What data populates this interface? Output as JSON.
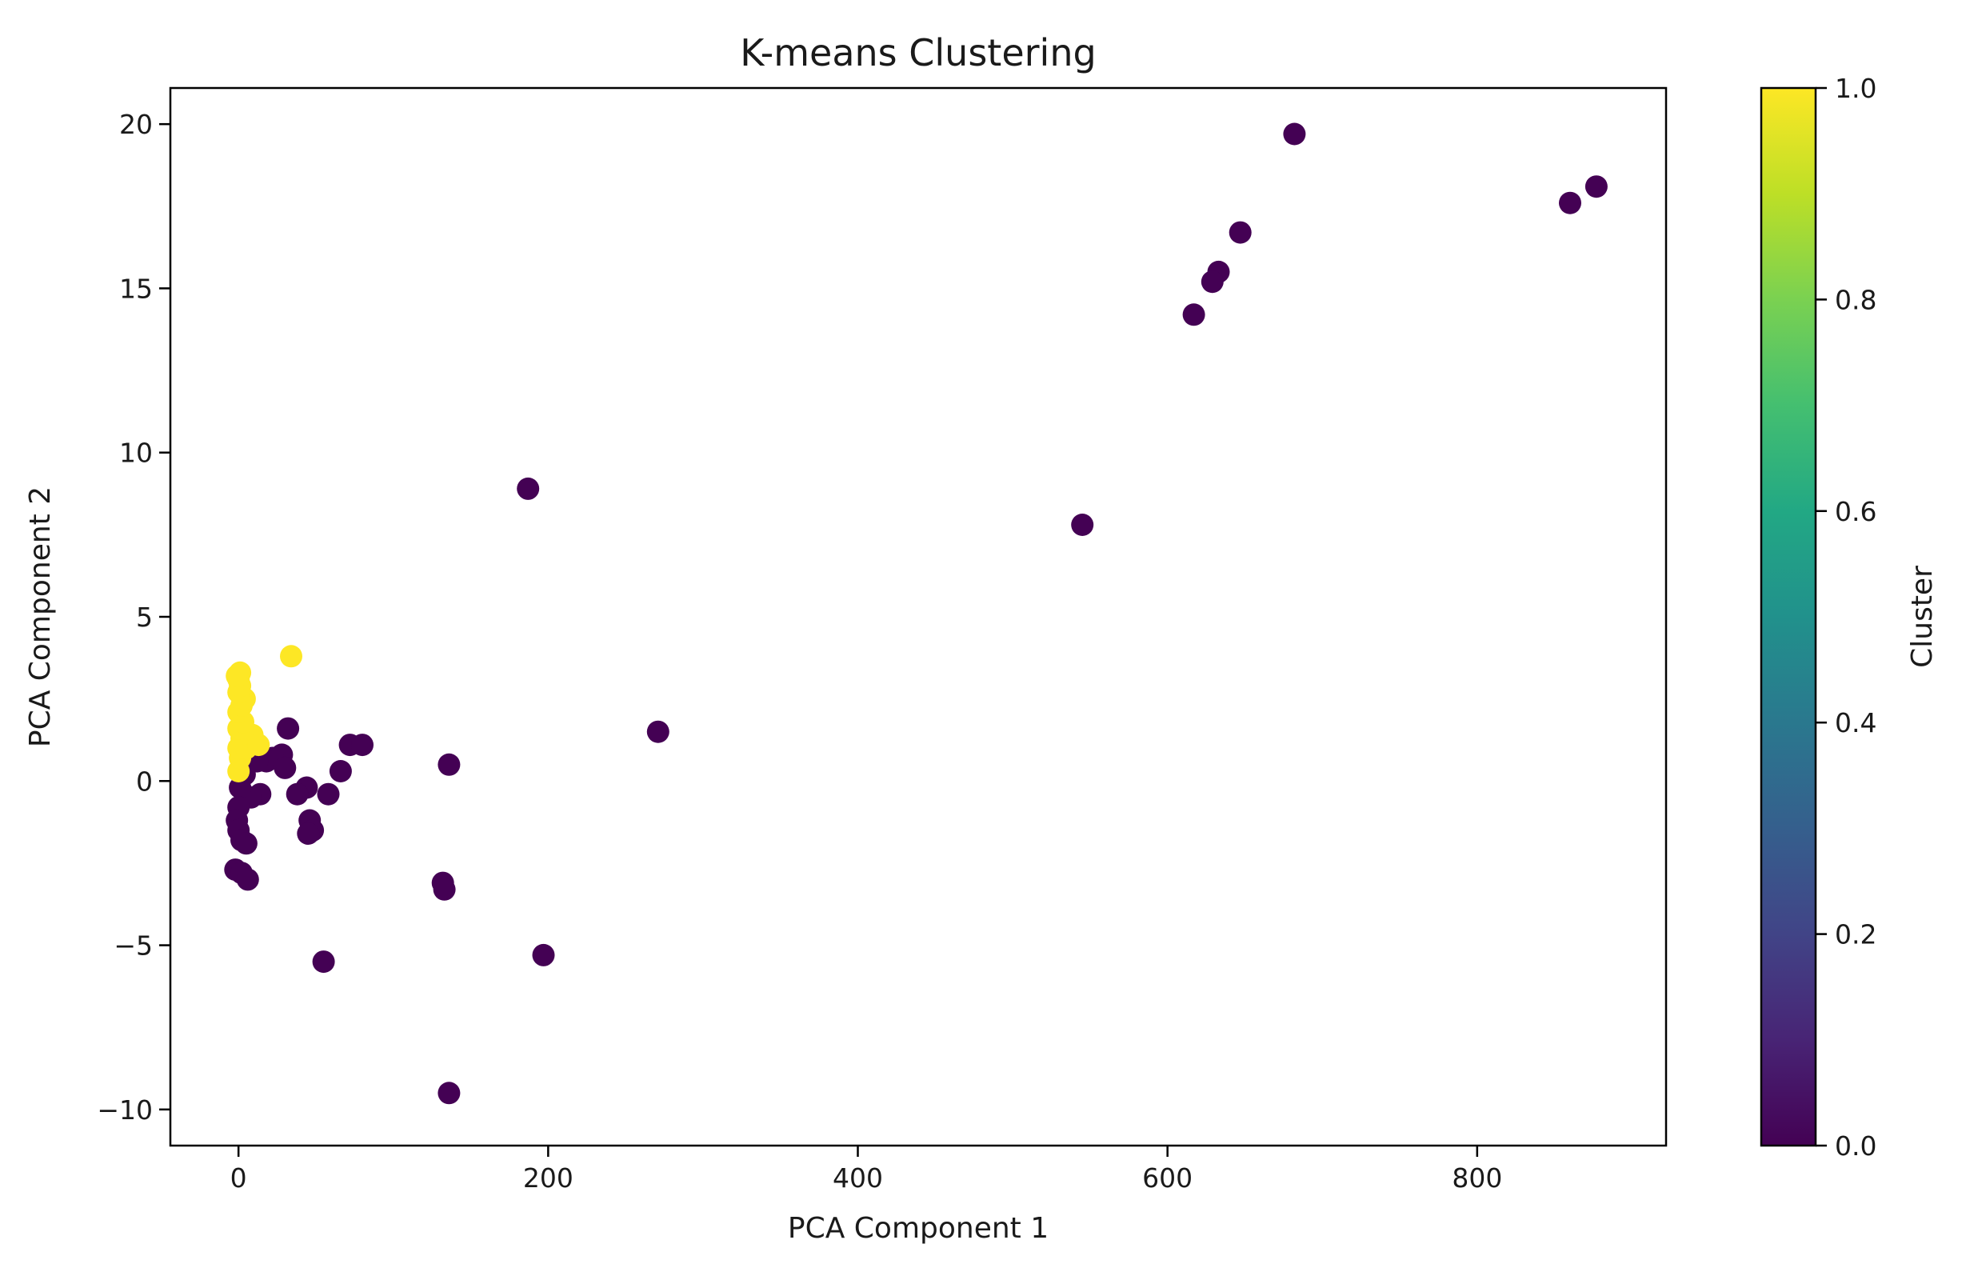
{
  "chart_data": {
    "type": "scatter",
    "title": "K-means Clustering",
    "xlabel": "PCA Component 1",
    "ylabel": "PCA Component 2",
    "xlim": [
      -44,
      922
    ],
    "ylim": [
      -11.1,
      21.1
    ],
    "xticks": [
      0,
      200,
      400,
      600,
      800
    ],
    "yticks": [
      -10,
      -5,
      0,
      5,
      10,
      15,
      20
    ],
    "grid": false,
    "colormap": "viridis",
    "colorbar": {
      "label": "Cluster",
      "range": [
        0.0,
        1.0
      ],
      "ticks": [
        "0.0",
        "0.2",
        "0.4",
        "0.6",
        "0.8",
        "1.0"
      ]
    },
    "cluster_colors": {
      "0": "#440154",
      "1": "#fde725"
    },
    "points": [
      {
        "x": 682,
        "y": 19.7,
        "cluster": 0
      },
      {
        "x": 877,
        "y": 18.1,
        "cluster": 0
      },
      {
        "x": 860,
        "y": 17.6,
        "cluster": 0
      },
      {
        "x": 647,
        "y": 16.7,
        "cluster": 0
      },
      {
        "x": 633,
        "y": 15.5,
        "cluster": 0
      },
      {
        "x": 629,
        "y": 15.2,
        "cluster": 0
      },
      {
        "x": 617,
        "y": 14.2,
        "cluster": 0
      },
      {
        "x": 187,
        "y": 8.9,
        "cluster": 0
      },
      {
        "x": 545,
        "y": 7.8,
        "cluster": 0
      },
      {
        "x": 271,
        "y": 1.5,
        "cluster": 0
      },
      {
        "x": 136,
        "y": 0.5,
        "cluster": 0
      },
      {
        "x": 32,
        "y": 1.6,
        "cluster": 0
      },
      {
        "x": 72,
        "y": 1.1,
        "cluster": 0
      },
      {
        "x": 80,
        "y": 1.1,
        "cluster": 0
      },
      {
        "x": 66,
        "y": 0.3,
        "cluster": 0
      },
      {
        "x": 58,
        "y": -0.4,
        "cluster": 0
      },
      {
        "x": 44,
        "y": -0.2,
        "cluster": 0
      },
      {
        "x": 38,
        "y": -0.4,
        "cluster": 0
      },
      {
        "x": 28,
        "y": 0.8,
        "cluster": 0
      },
      {
        "x": 22,
        "y": 0.7,
        "cluster": 0
      },
      {
        "x": 18,
        "y": 0.6,
        "cluster": 0
      },
      {
        "x": 12,
        "y": 0.6,
        "cluster": 0
      },
      {
        "x": 30,
        "y": 0.4,
        "cluster": 0
      },
      {
        "x": 14,
        "y": -0.4,
        "cluster": 0
      },
      {
        "x": 8,
        "y": -0.5,
        "cluster": 0
      },
      {
        "x": 4,
        "y": 0.2,
        "cluster": 0
      },
      {
        "x": 1,
        "y": -0.2,
        "cluster": 0
      },
      {
        "x": 0,
        "y": -0.8,
        "cluster": 0
      },
      {
        "x": -1,
        "y": -1.2,
        "cluster": 0
      },
      {
        "x": 0,
        "y": -1.5,
        "cluster": 0
      },
      {
        "x": 2,
        "y": -1.8,
        "cluster": 0
      },
      {
        "x": 5,
        "y": -1.9,
        "cluster": 0
      },
      {
        "x": 46,
        "y": -1.2,
        "cluster": 0
      },
      {
        "x": 48,
        "y": -1.5,
        "cluster": 0
      },
      {
        "x": 45,
        "y": -1.6,
        "cluster": 0
      },
      {
        "x": -2,
        "y": -2.7,
        "cluster": 0
      },
      {
        "x": 2,
        "y": -2.8,
        "cluster": 0
      },
      {
        "x": 6,
        "y": -3.0,
        "cluster": 0
      },
      {
        "x": 132,
        "y": -3.1,
        "cluster": 0
      },
      {
        "x": 133,
        "y": -3.3,
        "cluster": 0
      },
      {
        "x": 55,
        "y": -5.5,
        "cluster": 0
      },
      {
        "x": 197,
        "y": -5.3,
        "cluster": 0
      },
      {
        "x": 136,
        "y": -9.5,
        "cluster": 0
      },
      {
        "x": 0,
        "y": 0.3,
        "cluster": 1
      },
      {
        "x": 1,
        "y": 0.7,
        "cluster": 1
      },
      {
        "x": 0,
        "y": 1.0,
        "cluster": 1
      },
      {
        "x": 2,
        "y": 1.3,
        "cluster": 1
      },
      {
        "x": 5,
        "y": 1.0,
        "cluster": 1
      },
      {
        "x": 9,
        "y": 1.4,
        "cluster": 1
      },
      {
        "x": 13,
        "y": 1.1,
        "cluster": 1
      },
      {
        "x": 0,
        "y": 1.6,
        "cluster": 1
      },
      {
        "x": 3,
        "y": 1.8,
        "cluster": 1
      },
      {
        "x": 0,
        "y": 2.1,
        "cluster": 1
      },
      {
        "x": 2,
        "y": 2.3,
        "cluster": 1
      },
      {
        "x": 4,
        "y": 2.5,
        "cluster": 1
      },
      {
        "x": 0,
        "y": 2.7,
        "cluster": 1
      },
      {
        "x": 1,
        "y": 2.9,
        "cluster": 1
      },
      {
        "x": 0,
        "y": 3.1,
        "cluster": 1
      },
      {
        "x": 1,
        "y": 3.3,
        "cluster": 1
      },
      {
        "x": -1,
        "y": 3.2,
        "cluster": 1
      },
      {
        "x": 34,
        "y": 3.8,
        "cluster": 1
      }
    ]
  }
}
